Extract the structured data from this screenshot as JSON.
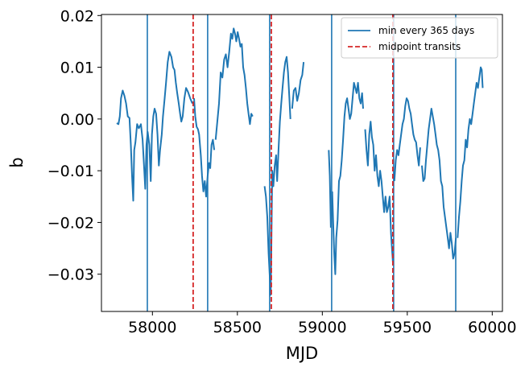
{
  "chart_data": {
    "type": "line",
    "xlabel": "MJD",
    "ylabel": "b",
    "xlim": [
      57700,
      60060
    ],
    "ylim": [
      -0.0372,
      0.0202
    ],
    "x_ticks": [
      58000,
      58500,
      59000,
      59500,
      60000
    ],
    "x_tick_labels": [
      "58000",
      "58500",
      "59000",
      "59500",
      "60000"
    ],
    "y_ticks": [
      -0.03,
      -0.02,
      -0.01,
      0.0,
      0.01,
      0.02
    ],
    "y_tick_labels": [
      "−0.03",
      "−0.02",
      "−0.01",
      "0.00",
      "0.01",
      "0.02"
    ],
    "grid": false,
    "legend_position": "top-right",
    "colors": {
      "data": "#1f77b4",
      "min_lines": "#1f77b4",
      "transits": "#d62728"
    },
    "series": [
      {
        "kind": "data",
        "segments": [
          [
            [
              57790,
              -0.0008
            ],
            [
              57800,
              -0.001
            ],
            [
              57808,
              0.0005
            ],
            [
              57815,
              0.004
            ],
            [
              57825,
              0.0055
            ],
            [
              57835,
              0.0045
            ],
            [
              57845,
              0.003
            ],
            [
              57855,
              0.0005
            ],
            [
              57865,
              0.0002
            ],
            [
              57873,
              -0.005
            ],
            [
              57880,
              -0.011
            ],
            [
              57887,
              -0.0158
            ],
            [
              57893,
              -0.006
            ],
            [
              57900,
              -0.0045
            ],
            [
              57910,
              -0.001
            ],
            [
              57920,
              -0.0018
            ],
            [
              57932,
              -0.001
            ],
            [
              57942,
              -0.004
            ],
            [
              57952,
              -0.01
            ],
            [
              57958,
              -0.0135
            ],
            [
              57965,
              -0.005
            ],
            [
              57972,
              -0.0025
            ],
            [
              57982,
              -0.005
            ],
            [
              57990,
              -0.012
            ],
            [
              57997,
              -0.003
            ],
            [
              58005,
              0.0005
            ],
            [
              58013,
              0.002
            ],
            [
              58022,
              0.001
            ],
            [
              58030,
              -0.003
            ],
            [
              58038,
              -0.009
            ],
            [
              58045,
              -0.006
            ],
            [
              58055,
              -0.003
            ],
            [
              58062,
              0.0005
            ],
            [
              58072,
              0.004
            ],
            [
              58080,
              0.007
            ],
            [
              58090,
              0.011
            ],
            [
              58100,
              0.013
            ],
            [
              58112,
              0.012
            ],
            [
              58122,
              0.01
            ],
            [
              58130,
              0.0095
            ],
            [
              58138,
              0.007
            ],
            [
              58146,
              0.005
            ],
            [
              58155,
              0.003
            ],
            [
              58163,
              0.001
            ],
            [
              58170,
              -0.0005
            ],
            [
              58178,
              0.0005
            ],
            [
              58188,
              0.004
            ],
            [
              58198,
              0.006
            ],
            [
              58210,
              0.0052
            ],
            [
              58222,
              0.004
            ],
            [
              58235,
              0.003
            ]
          ],
          [
            [
              58245,
              0.004
            ],
            [
              58252,
              0.0005
            ],
            [
              58260,
              -0.0015
            ],
            [
              58268,
              -0.002
            ],
            [
              58275,
              -0.003
            ],
            [
              58285,
              -0.007
            ],
            [
              58292,
              -0.011
            ],
            [
              58300,
              -0.014
            ],
            [
              58308,
              -0.012
            ],
            [
              58316,
              -0.015
            ],
            [
              58325,
              -0.011
            ],
            [
              58333,
              -0.0085
            ],
            [
              58340,
              -0.0095
            ],
            [
              58348,
              -0.005
            ],
            [
              58356,
              -0.004
            ],
            [
              58364,
              -0.006
            ]
          ],
          [
            [
              58372,
              -0.004
            ],
            [
              58382,
              -0.0005
            ],
            [
              58392,
              0.003
            ],
            [
              58402,
              0.009
            ],
            [
              58412,
              0.008
            ],
            [
              58422,
              0.0115
            ],
            [
              58432,
              0.0125
            ],
            [
              58442,
              0.01
            ],
            [
              58452,
              0.013
            ],
            [
              58462,
              0.0165
            ],
            [
              58470,
              0.0155
            ],
            [
              58478,
              0.0175
            ],
            [
              58486,
              0.0165
            ],
            [
              58494,
              0.015
            ],
            [
              58502,
              0.0168
            ],
            [
              58510,
              0.0155
            ],
            [
              58518,
              0.014
            ],
            [
              58526,
              0.0145
            ],
            [
              58534,
              0.01
            ],
            [
              58542,
              0.0085
            ],
            [
              58550,
              0.006
            ],
            [
              58558,
              0.003
            ],
            [
              58566,
              0.001
            ],
            [
              58574,
              -0.001
            ],
            [
              58582,
              0.001
            ],
            [
              58590,
              0.0005
            ]
          ],
          [
            [
              58660,
              -0.013
            ],
            [
              58668,
              -0.015
            ],
            [
              58676,
              -0.019
            ],
            [
              58684,
              -0.026
            ],
            [
              58690,
              -0.03
            ],
            [
              58696,
              -0.034
            ],
            [
              58700,
              -0.025
            ],
            [
              58705,
              -0.01
            ],
            [
              58712,
              -0.013
            ],
            [
              58720,
              -0.009
            ],
            [
              58728,
              -0.007
            ],
            [
              58734,
              -0.012
            ],
            [
              58742,
              -0.006
            ],
            [
              58750,
              -0.0005
            ],
            [
              58758,
              0.003
            ],
            [
              58766,
              0.006
            ],
            [
              58774,
              0.009
            ],
            [
              58782,
              0.011
            ],
            [
              58790,
              0.012
            ],
            [
              58798,
              0.009
            ],
            [
              58806,
              0.004
            ],
            [
              58812,
              0.0
            ]
          ],
          [
            [
              58822,
              0.002
            ],
            [
              58832,
              0.0055
            ],
            [
              58842,
              0.006
            ],
            [
              58852,
              0.0035
            ],
            [
              58862,
              0.005
            ],
            [
              58872,
              0.0075
            ],
            [
              58882,
              0.0085
            ],
            [
              58890,
              0.011
            ]
          ],
          [
            [
              59038,
              -0.006
            ],
            [
              59044,
              -0.011
            ],
            [
              59050,
              -0.021
            ]
          ],
          [
            [
              59058,
              -0.014
            ],
            [
              59064,
              -0.02
            ],
            [
              59070,
              -0.026
            ],
            [
              59076,
              -0.03
            ],
            [
              59082,
              -0.023
            ],
            [
              59090,
              -0.0195
            ],
            [
              59098,
              -0.012
            ],
            [
              59106,
              -0.011
            ],
            [
              59114,
              -0.008
            ],
            [
              59122,
              -0.004
            ],
            [
              59130,
              0.0005
            ],
            [
              59138,
              0.003
            ],
            [
              59146,
              0.004
            ],
            [
              59154,
              0.002
            ],
            [
              59162,
              0.0
            ],
            [
              59170,
              0.001
            ],
            [
              59178,
              0.004
            ],
            [
              59186,
              0.007
            ],
            [
              59194,
              0.006
            ],
            [
              59202,
              0.005
            ],
            [
              59210,
              0.007
            ],
            [
              59218,
              0.004
            ],
            [
              59226,
              0.003
            ],
            [
              59234,
              0.005
            ],
            [
              59240,
              0.002
            ]
          ],
          [
            [
              59252,
              -0.002
            ],
            [
              59260,
              -0.006
            ],
            [
              59268,
              -0.009
            ],
            [
              59276,
              -0.003
            ],
            [
              59284,
              -0.0005
            ],
            [
              59292,
              -0.0035
            ],
            [
              59300,
              -0.005
            ],
            [
              59308,
              -0.01
            ],
            [
              59316,
              -0.007
            ],
            [
              59324,
              -0.011
            ],
            [
              59332,
              -0.013
            ],
            [
              59340,
              -0.01
            ],
            [
              59348,
              -0.012
            ],
            [
              59356,
              -0.015
            ],
            [
              59364,
              -0.018
            ],
            [
              59372,
              -0.015
            ],
            [
              59380,
              -0.018
            ],
            [
              59388,
              -0.017
            ],
            [
              59396,
              -0.015
            ],
            [
              59404,
              -0.022
            ],
            [
              59410,
              -0.025
            ],
            [
              59416,
              -0.028
            ]
          ],
          [
            [
              59424,
              -0.012
            ],
            [
              59432,
              -0.008
            ],
            [
              59440,
              -0.006
            ],
            [
              59448,
              -0.007
            ],
            [
              59456,
              -0.005
            ],
            [
              59464,
              -0.003
            ],
            [
              59472,
              -0.001
            ],
            [
              59480,
              0.0
            ],
            [
              59488,
              0.0025
            ],
            [
              59496,
              0.004
            ],
            [
              59504,
              0.0035
            ],
            [
              59512,
              0.002
            ],
            [
              59520,
              0.001
            ],
            [
              59528,
              -0.001
            ],
            [
              59536,
              -0.003
            ],
            [
              59544,
              -0.004
            ],
            [
              59552,
              -0.0045
            ],
            [
              59560,
              -0.007
            ],
            [
              59568,
              -0.009
            ],
            [
              59576,
              -0.0055
            ]
          ],
          [
            [
              59586,
              -0.009
            ],
            [
              59594,
              -0.012
            ],
            [
              59602,
              -0.0115
            ],
            [
              59610,
              -0.008
            ],
            [
              59618,
              -0.005
            ],
            [
              59626,
              -0.002
            ],
            [
              59634,
              0.0
            ],
            [
              59642,
              0.002
            ],
            [
              59650,
              0.0005
            ],
            [
              59658,
              -0.001
            ],
            [
              59666,
              -0.003
            ],
            [
              59674,
              -0.005
            ],
            [
              59682,
              -0.006
            ],
            [
              59690,
              -0.008
            ],
            [
              59698,
              -0.012
            ],
            [
              59706,
              -0.013
            ],
            [
              59714,
              -0.017
            ],
            [
              59722,
              -0.019
            ],
            [
              59730,
              -0.021
            ],
            [
              59738,
              -0.023
            ],
            [
              59746,
              -0.025
            ],
            [
              59754,
              -0.022
            ],
            [
              59762,
              -0.024
            ],
            [
              59770,
              -0.027
            ],
            [
              59778,
              -0.026
            ],
            [
              59786,
              -0.023
            ]
          ],
          [
            [
              59796,
              -0.023
            ],
            [
              59804,
              -0.019
            ],
            [
              59812,
              -0.016
            ],
            [
              59820,
              -0.012
            ],
            [
              59828,
              -0.009
            ],
            [
              59836,
              -0.008
            ],
            [
              59844,
              -0.004
            ],
            [
              59852,
              -0.0055
            ],
            [
              59860,
              -0.002
            ],
            [
              59868,
              0.0
            ],
            [
              59876,
              -0.001
            ],
            [
              59884,
              0.001
            ],
            [
              59892,
              0.003
            ],
            [
              59900,
              0.005
            ],
            [
              59908,
              0.007
            ],
            [
              59916,
              0.006
            ],
            [
              59924,
              0.008
            ],
            [
              59932,
              0.01
            ],
            [
              59938,
              0.0095
            ],
            [
              59944,
              0.006
            ]
          ]
        ]
      },
      {
        "name": "min every 365 days",
        "kind": "vlines",
        "style": "solid",
        "x": [
          57970,
          58325,
          58690,
          59055,
          59420,
          59785
        ]
      },
      {
        "name": "midpoint transits",
        "kind": "vlines",
        "style": "dashed",
        "x": [
          58240,
          58700,
          59415
        ]
      }
    ]
  }
}
